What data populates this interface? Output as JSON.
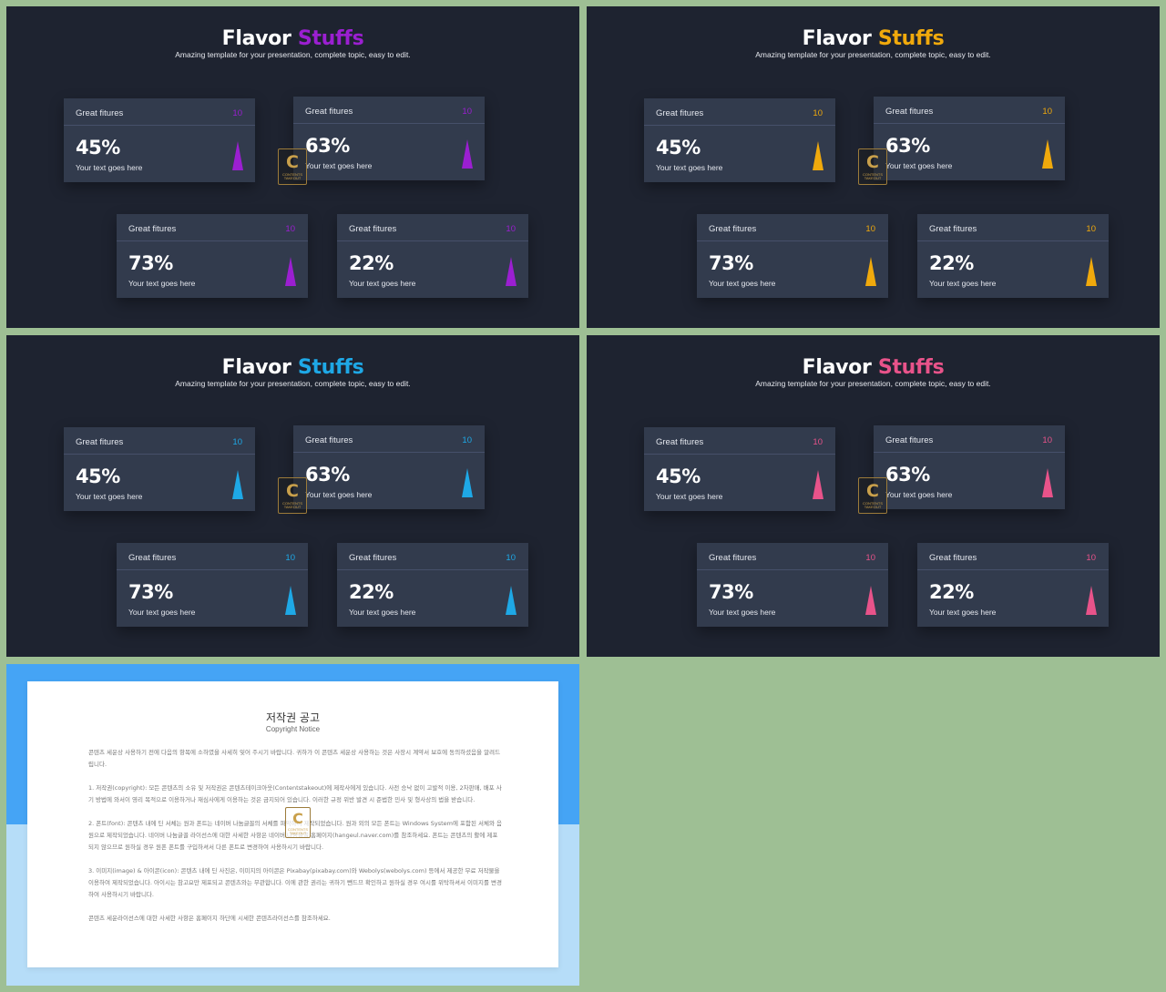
{
  "slides": [
    {
      "title_main": "Flavor",
      "title_accent": "Stuffs",
      "subtitle": "Amazing template for your presentation, complete topic, easy to edit.",
      "accent": "#9b1fd1",
      "cards": [
        {
          "label": "Great fitures",
          "number": "10",
          "percent": "45%",
          "text": "Your text goes here"
        },
        {
          "label": "Great fitures",
          "number": "10",
          "percent": "63%",
          "text": "Your text goes here"
        },
        {
          "label": "Great fitures",
          "number": "10",
          "percent": "73%",
          "text": "Your text goes here"
        },
        {
          "label": "Great fitures",
          "number": "10",
          "percent": "22%",
          "text": "Your text goes here"
        }
      ],
      "watermark": {
        "letter": "C",
        "text": "CONTENTS TAKEOUT"
      }
    },
    {
      "title_main": "Flavor",
      "title_accent": "Stuffs",
      "subtitle": "Amazing template for your presentation, complete topic, easy to edit.",
      "accent": "#f0a90c",
      "cards": [
        {
          "label": "Great fitures",
          "number": "10",
          "percent": "45%",
          "text": "Your text goes here"
        },
        {
          "label": "Great fitures",
          "number": "10",
          "percent": "63%",
          "text": "Your text goes here"
        },
        {
          "label": "Great fitures",
          "number": "10",
          "percent": "73%",
          "text": "Your text goes here"
        },
        {
          "label": "Great fitures",
          "number": "10",
          "percent": "22%",
          "text": "Your text goes here"
        }
      ],
      "watermark": {
        "letter": "C",
        "text": "CONTENTS TAKEOUT"
      }
    },
    {
      "title_main": "Flavor",
      "title_accent": "Stuffs",
      "subtitle": "Amazing template for your presentation, complete topic, easy to edit.",
      "accent": "#1ea8e6",
      "cards": [
        {
          "label": "Great fitures",
          "number": "10",
          "percent": "45%",
          "text": "Your text goes here"
        },
        {
          "label": "Great fitures",
          "number": "10",
          "percent": "63%",
          "text": "Your text goes here"
        },
        {
          "label": "Great fitures",
          "number": "10",
          "percent": "73%",
          "text": "Your text goes here"
        },
        {
          "label": "Great fitures",
          "number": "10",
          "percent": "22%",
          "text": "Your text goes here"
        }
      ],
      "watermark": {
        "letter": "C",
        "text": "CONTENTS TAKEOUT"
      }
    },
    {
      "title_main": "Flavor",
      "title_accent": "Stuffs",
      "subtitle": "Amazing template for your presentation, complete topic, easy to edit.",
      "accent": "#e8538a",
      "cards": [
        {
          "label": "Great fitures",
          "number": "10",
          "percent": "45%",
          "text": "Your text goes here"
        },
        {
          "label": "Great fitures",
          "number": "10",
          "percent": "63%",
          "text": "Your text goes here"
        },
        {
          "label": "Great fitures",
          "number": "10",
          "percent": "73%",
          "text": "Your text goes here"
        },
        {
          "label": "Great fitures",
          "number": "10",
          "percent": "22%",
          "text": "Your text goes here"
        }
      ],
      "watermark": {
        "letter": "C",
        "text": "CONTENTS TAKEOUT"
      }
    }
  ],
  "notice": {
    "title": "저작권 공고",
    "subtitle": "Copyright Notice",
    "paragraphs": [
      "콘텐츠 세운상 사용하기 전에 다음의 항목에 소하였을 사세히 잊어 주시기 바랍니다. 귀하가 이 콘텐츠 세운상 사용하는 것은 사장시 계약서 보호에 동의하셨음을 알려드립니다.",
      "1. 저작권(copyright): 모든 콘텐츠의 소유 및 저작권은 콘텐츠테이크아웃(Contentstakeout)에 제작사에게 있습니다. 사전 승낙 없이 고발적 이용, 2차판매, 배포 사기 방법에 와서이 영리 목적으로 이용하거나 재심사에게 이용하는 것은 금지되어 있습니다. 이러한 규정 위반 발견 시 준법한 민사 및 형사상의 법을 받습니다.",
      "2. 폰트(font): 콘텐츠 내에 딘 서체는 원과 폰트는 네이버 나눔글꼴의 서체를 파악하여 제작되었습니다. 원과 외의 모든 폰트는 Windows System에 포함된 서체와 음원으로 제작되었습니다. 네이버 나눔글꼴 라이선스에 대한 사세한 사항은 네이버 나눔글꼴 홈페이지(hangeul.naver.com)를 참조하세요. 폰트는 콘텐츠의 활에 제포되지 않으므로 원하실 경우 원폰 폰트를 구입하셔서 다른 폰트로 변경하여 사용하시기 바랍니다.",
      "3. 이미지(image) & 아이콘(icon): 콘텐츠 내에 딘 사진은, 이미지의 아이콘은 Pixabay(pixabay.com)와 Webolys(webolys.com) 등에서 제공한 무료 저작물을 이용하여 제작되었습니다. 아이시는 참고요만 제포되고 콘텐츠와는 무관합니다. 이에 관한 권리는 귀하기 뺀드므 확인하고 원하실 경우 여시를 위탁하셔서 이미지를 변경하여 사용하시기 바랍니다.",
      "콘텐츠 세운라이선스에 대한 사세한 사항은 홈페이지 하단에 시세한 콘텐츠라이선스를 참조하세요."
    ]
  }
}
